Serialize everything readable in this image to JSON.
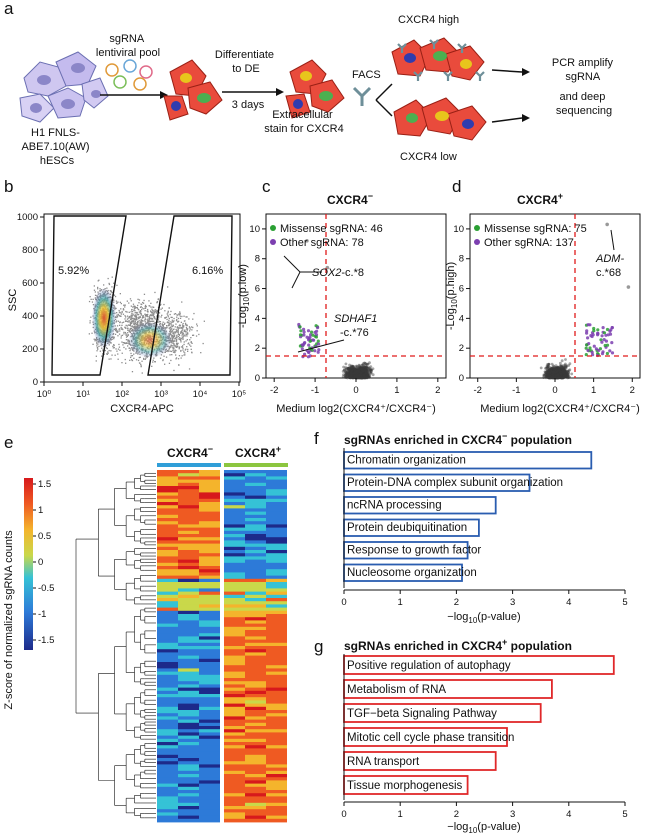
{
  "panel_labels": {
    "a": "a",
    "b": "b",
    "c": "c",
    "d": "d",
    "e": "e",
    "f": "f",
    "g": "g"
  },
  "panel_a": {
    "cells_label": "H1 FNLS-ABE7.10(AW) hESCs",
    "cells_label_lines": [
      "H1 FNLS-",
      "ABE7.10(AW)",
      "hESCs"
    ],
    "pool_label_lines": [
      "sgRNA",
      "lentiviral pool"
    ],
    "diff_label_lines": [
      "Differentiate",
      "to DE"
    ],
    "days_label": "3 days",
    "stain_label_lines": [
      "Extracellular",
      "stain for CXCR4"
    ],
    "facs_label": "FACS",
    "high_label": "CXCR4 high",
    "low_label": "CXCR4 low",
    "pcr_label_lines": [
      "PCR amplify",
      "sgRNA",
      "and deep",
      "sequencing"
    ],
    "colors": {
      "cell": "#e94b3c",
      "cell_edge": "#9a2015",
      "hesc": "#cfc7f0",
      "nucleus_green": "#4caf50",
      "nucleus_yellow": "#e8c51c",
      "nucleus_blue": "#2f3cae",
      "antibody": "#6e8f99"
    }
  },
  "panel_b": {
    "ylabel": "SSC",
    "xlabel": "CXCR4-APC",
    "gate_left_pct": "5.92%",
    "gate_right_pct": "6.16%",
    "yticks": [
      "0",
      "200",
      "400",
      "600",
      "800",
      "1000"
    ],
    "xticks": [
      "10⁰",
      "10¹",
      "10²",
      "10³",
      "10⁴",
      "10⁵"
    ]
  },
  "panel_c": {
    "title": "CXCR4",
    "title_sup": "−",
    "legend_missense": "Missense sgRNA: 46",
    "legend_other": "Other sgRNA: 78",
    "ylabel_main": "-Log",
    "ylabel_sub": "10",
    "ylabel_tail": "(p.low)",
    "xlabel": "Medium log2(CXCR4⁺/CXCR4⁻)",
    "annot1_gene": "SOX2",
    "annot1_var": "-c.*8",
    "annot2_gene": "SDHAF1",
    "annot2_var": "-c.*76",
    "xticks": [
      "-2",
      "-1",
      "0",
      "1",
      "2"
    ],
    "yticks": [
      "0",
      "2",
      "4",
      "6",
      "8",
      "10"
    ]
  },
  "panel_d": {
    "title": "CXCR4",
    "title_sup": "+",
    "legend_missense": "Missense sgRNA: 75",
    "legend_other": "Other sgRNA: 137",
    "ylabel_main": "-Log",
    "ylabel_sub": "10",
    "ylabel_tail": "(p.high)",
    "xlabel": "Medium log2(CXCR4⁺/CXCR4⁻)",
    "annot_gene": "ADM-",
    "annot_var": "c.*68",
    "xticks": [
      "-2",
      "-1",
      "0",
      "1",
      "2"
    ],
    "yticks": [
      "0",
      "2",
      "4",
      "6",
      "8",
      "10"
    ]
  },
  "panel_e": {
    "col_left": "CXCR4",
    "col_left_sup": "−",
    "col_right": "CXCR4",
    "col_right_sup": "+",
    "colorbar_label": "Z-score of normalized sgRNA counts",
    "colorbar_ticks": [
      "1.5",
      "1",
      "0.5",
      "0",
      "-0.5",
      "-1",
      "-1.5"
    ]
  },
  "chart_data": [
    {
      "type": "bar",
      "orientation": "horizontal",
      "title": "sgRNAs enriched in CXCR4⁻ population",
      "title_main": "sgRNAs enriched in CXCR4",
      "title_sup": "−",
      "title_tail": " population",
      "categories": [
        "Chromatin organization",
        "Protein-DNA complex subunit organization",
        "ncRNA processing",
        "Protein deubiquitination",
        "Response to growth factor",
        "Nucleosome organization"
      ],
      "values": [
        4.4,
        3.3,
        2.7,
        2.4,
        2.2,
        2.1
      ],
      "xlabel_main": "−log",
      "xlabel_sub": "10",
      "xlabel_tail": "(p-value)",
      "xlim": [
        0,
        5
      ],
      "xticks": [
        "0",
        "1",
        "2",
        "3",
        "4",
        "5"
      ],
      "bar_color": "#2a5db0"
    },
    {
      "type": "bar",
      "orientation": "horizontal",
      "title": "sgRNAs enriched in CXCR4⁺ population",
      "title_main": "sgRNAs enriched in CXCR4",
      "title_sup": "+",
      "title_tail": " population",
      "categories": [
        "Positive regulation of autophagy",
        "Metabolism of RNA",
        "TGF−beta Signaling Pathway",
        "Mitotic cell cycle phase transition",
        "RNA transport",
        "Tissue morphogenesis"
      ],
      "values": [
        4.8,
        3.7,
        3.5,
        2.9,
        2.7,
        2.2
      ],
      "xlabel_main": "−log",
      "xlabel_sub": "10",
      "xlabel_tail": "(p-value)",
      "xlim": [
        0,
        5
      ],
      "xticks": [
        "0",
        "1",
        "2",
        "3",
        "4",
        "5"
      ],
      "bar_color": "#e0282a"
    }
  ]
}
